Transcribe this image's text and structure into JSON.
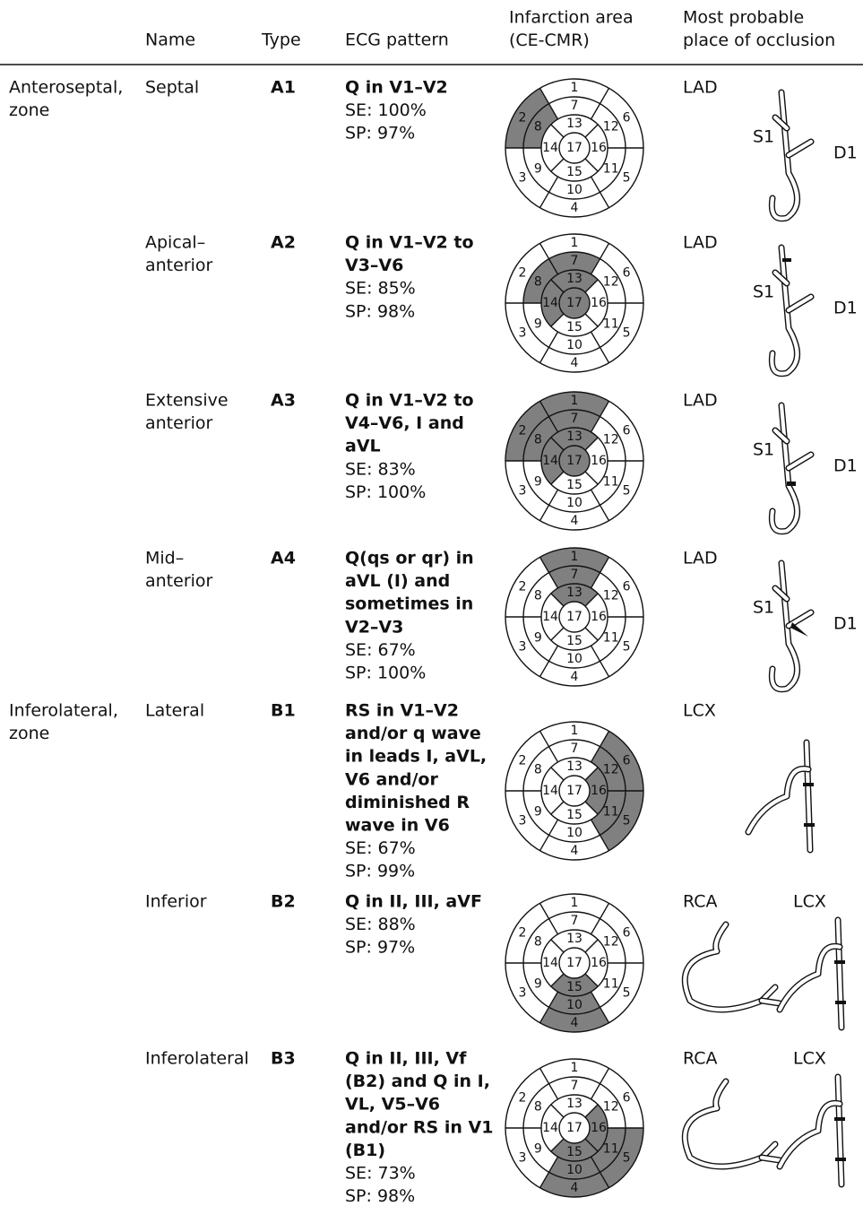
{
  "header": {
    "columns": [
      [
        "Name"
      ],
      [
        "Type"
      ],
      [
        "ECG pattern"
      ],
      [
        "Infarction area",
        "(CE-CMR)"
      ],
      [
        "Most probable",
        "place of occlusion"
      ]
    ]
  },
  "segment_labels": [
    1,
    2,
    3,
    4,
    5,
    6,
    7,
    8,
    9,
    10,
    11,
    12,
    13,
    14,
    15,
    16,
    17
  ],
  "rows": [
    {
      "zone": [
        "Anteroseptal,",
        "zone"
      ],
      "name": [
        "Septal"
      ],
      "type": "A1",
      "ecg": [
        "Q in V1–V2"
      ],
      "se": "SE: 100%",
      "sp": "SP: 97%",
      "vessels": [
        "LAD"
      ],
      "branches": [
        "S1",
        "D1"
      ]
    },
    {
      "name": [
        "Apical–",
        "anterior"
      ],
      "type": "A2",
      "ecg": [
        "Q in V1–V2 to",
        "V3–V6"
      ],
      "se": "SE: 85%",
      "sp": "SP: 98%",
      "vessels": [
        "LAD"
      ],
      "branches": [
        "S1",
        "D1"
      ]
    },
    {
      "name": [
        "Extensive",
        "anterior"
      ],
      "type": "A3",
      "ecg": [
        "Q in V1–V2 to",
        "V4–V6, I and",
        "aVL"
      ],
      "se": "SE: 83%",
      "sp": "SP: 100%",
      "vessels": [
        "LAD"
      ],
      "branches": [
        "S1",
        "D1"
      ]
    },
    {
      "name": [
        "Mid–",
        "anterior"
      ],
      "type": "A4",
      "ecg": [
        "Q(qs or qr) in",
        "aVL (I) and",
        "sometimes in",
        "V2–V3"
      ],
      "se": "SE: 67%",
      "sp": "SP: 100%",
      "vessels": [
        "LAD"
      ],
      "branches": [
        "S1",
        "D1"
      ]
    },
    {
      "zone": [
        "Inferolateral,",
        "zone"
      ],
      "name": [
        "Lateral"
      ],
      "type": "B1",
      "ecg": [
        "RS in V1–V2",
        "and/or q wave",
        "in leads I, aVL,",
        "V6 and/or",
        "diminished R",
        "wave in V6"
      ],
      "se": "SE: 67%",
      "sp": "SP: 99%",
      "vessels": [
        "LCX"
      ]
    },
    {
      "name": [
        "Inferior"
      ],
      "type": "B2",
      "ecg": [
        "Q in II, III, aVF"
      ],
      "se": "SE: 88%",
      "sp": "SP: 97%",
      "vessels": [
        "RCA",
        "LCX"
      ]
    },
    {
      "name": [
        "Inferolateral"
      ],
      "type": "B3",
      "ecg": [
        "Q in II, III, Vf",
        "(B2) and Q in I,",
        "VL, V5–V6",
        "and/or RS in V1",
        "(B1)"
      ],
      "se": "SE: 73%",
      "sp": "SP: 98%",
      "vessels": [
        "RCA",
        "LCX"
      ]
    }
  ]
}
